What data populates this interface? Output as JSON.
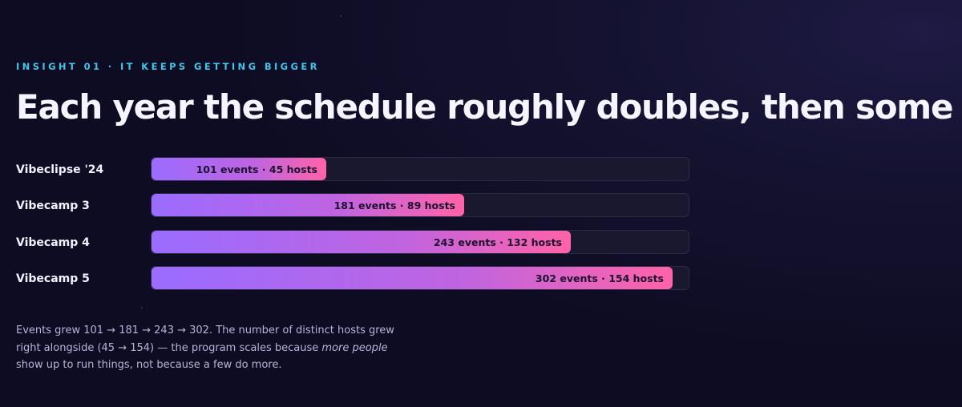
{
  "eyebrow": "INSIGHT 01 · IT KEEPS GETTING BIGGER",
  "headline": "Each year the schedule roughly doubles, then some",
  "colors": {
    "background": "#0e0c22",
    "eyebrow": "#3fc4ea",
    "bar_start": "#9a6cff",
    "bar_end": "#ff63a8",
    "track": "#1a182e"
  },
  "chart_data": {
    "type": "bar",
    "orientation": "horizontal",
    "categories": [
      "Vibeclipse '24",
      "Vibecamp 3",
      "Vibecamp 4",
      "Vibecamp 5"
    ],
    "values": [
      101,
      181,
      243,
      302
    ],
    "hosts": [
      45,
      89,
      132,
      154
    ],
    "data_labels": [
      "101 events · 45 hosts",
      "181 events · 89 hosts",
      "243 events · 132 hosts",
      "302 events · 154 hosts"
    ],
    "xlim": [
      0,
      312
    ],
    "title": "",
    "xlabel": "",
    "ylabel": "",
    "grid": false
  },
  "caption": {
    "part1": "Events grew 101 → 181 → 243 → 302. The number of distinct hosts grew right alongside (45 → 154) — the program scales because ",
    "emphasis": "more people",
    "part2": " show up to run things, not because a few do more."
  }
}
